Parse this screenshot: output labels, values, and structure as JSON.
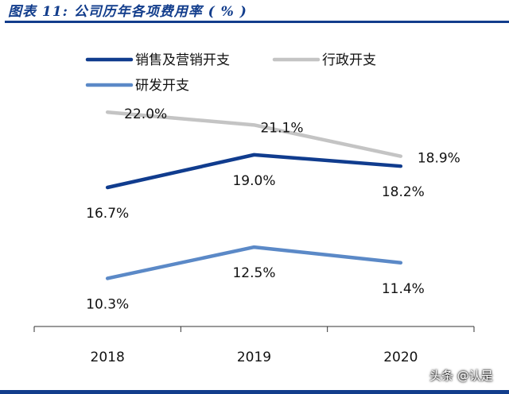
{
  "header": {
    "title": "图表 11:  公司历年各项费用率 ( % )"
  },
  "watermark": "头条 @认是",
  "chart_data": {
    "type": "line",
    "categories": [
      "2018",
      "2019",
      "2020"
    ],
    "series": [
      {
        "name": "销售及营销开支",
        "values": [
          16.7,
          19.0,
          18.2
        ],
        "labels": [
          "16.7%",
          "19.0%",
          "18.2%"
        ],
        "color": "#103c8e"
      },
      {
        "name": "行政开支",
        "values": [
          22.0,
          21.1,
          18.9
        ],
        "labels": [
          "22.0%",
          "21.1%",
          "18.9%"
        ],
        "color": "#c4c4c4"
      },
      {
        "name": "研发开支",
        "values": [
          10.3,
          12.5,
          11.4
        ],
        "labels": [
          "10.3%",
          "12.5%",
          "11.4%"
        ],
        "color": "#5b89c7"
      }
    ],
    "legend_position": "top-left",
    "grid": false,
    "title": "",
    "xlabel": "",
    "ylabel": ""
  }
}
